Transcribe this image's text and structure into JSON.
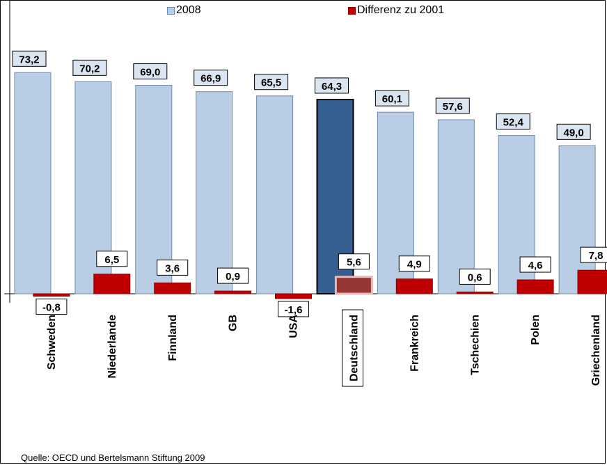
{
  "chart_data": {
    "type": "bar",
    "categories": [
      "Schweden",
      "Niederlande",
      "Finnland",
      "GB",
      "USA",
      "Deutschland",
      "Frankreich",
      "Tschechien",
      "Polen",
      "Griechenland"
    ],
    "series": [
      {
        "name": "2008",
        "values": [
          73.2,
          70.2,
          69.0,
          66.9,
          65.5,
          64.3,
          60.1,
          57.6,
          52.4,
          49.0
        ],
        "color": "#b9cde5"
      },
      {
        "name": "Differenz zu 2001",
        "values": [
          -0.8,
          6.5,
          3.6,
          0.9,
          -1.6,
          5.6,
          4.9,
          0.6,
          4.6,
          7.8
        ],
        "color": "#c00000"
      }
    ],
    "value_labels": {
      "2008": [
        "73,2",
        "70,2",
        "69,0",
        "66,9",
        "65,5",
        "64,3",
        "60,1",
        "57,6",
        "52,4",
        "49,0"
      ],
      "Differenz zu 2001": [
        "-0,8",
        "6,5",
        "3,6",
        "0,9",
        "-1,6",
        "5,6",
        "4,9",
        "0,6",
        "4,6",
        "7,8"
      ]
    },
    "highlighted_category": "Deutschland",
    "highlight_colors": {
      "2008": "#365f91",
      "Differenz zu 2001": "#953735"
    },
    "legend_position": "top",
    "grid": false,
    "title": "",
    "xlabel": "",
    "ylabel": ""
  },
  "legend": {
    "label_2008": "2008",
    "label_diff": "Differenz zu 2001"
  },
  "source": "Quelle: OECD und Bertelsmann Stiftung 2009"
}
